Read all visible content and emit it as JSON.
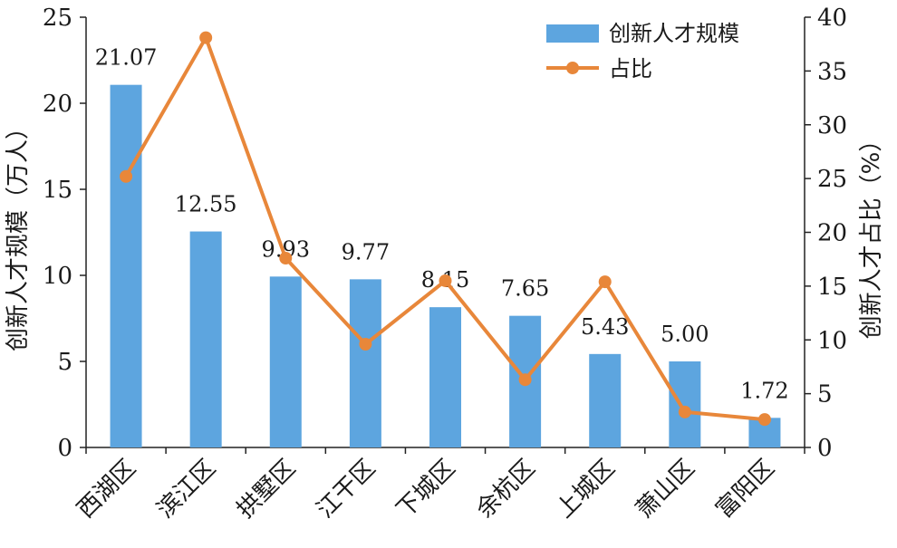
{
  "chart_data": {
    "type": "bar",
    "categories": [
      "西湖区",
      "滨江区",
      "拱墅区",
      "江干区",
      "下城区",
      "余杭区",
      "上城区",
      "萧山区",
      "富阳区"
    ],
    "series": [
      {
        "name": "创新人才规模",
        "type": "bar",
        "axis": "left",
        "values": [
          21.07,
          12.55,
          9.93,
          9.77,
          8.15,
          7.65,
          5.43,
          5.0,
          1.72
        ],
        "labels": [
          "21.07",
          "12.55",
          "9.93",
          "9.77",
          "8.15",
          "7.65",
          "5.43",
          "5.00",
          "1.72"
        ],
        "color": "#5DA5DF"
      },
      {
        "name": "占比",
        "type": "line",
        "axis": "right",
        "values": [
          25.2,
          38.1,
          17.6,
          9.6,
          15.5,
          6.3,
          15.4,
          3.3,
          2.6
        ],
        "color": "#E8873A"
      }
    ],
    "ylabel": "创新人才规模（万人）",
    "y2label": "创新人才占比（%）",
    "ylim": [
      0,
      25
    ],
    "y2lim": [
      0,
      40
    ],
    "yticks": [
      "0",
      "5",
      "10",
      "15",
      "20",
      "25"
    ],
    "y2ticks": [
      "0",
      "5",
      "10",
      "15",
      "20",
      "25",
      "30",
      "35",
      "40"
    ],
    "legend": "top-right",
    "grid": false
  }
}
